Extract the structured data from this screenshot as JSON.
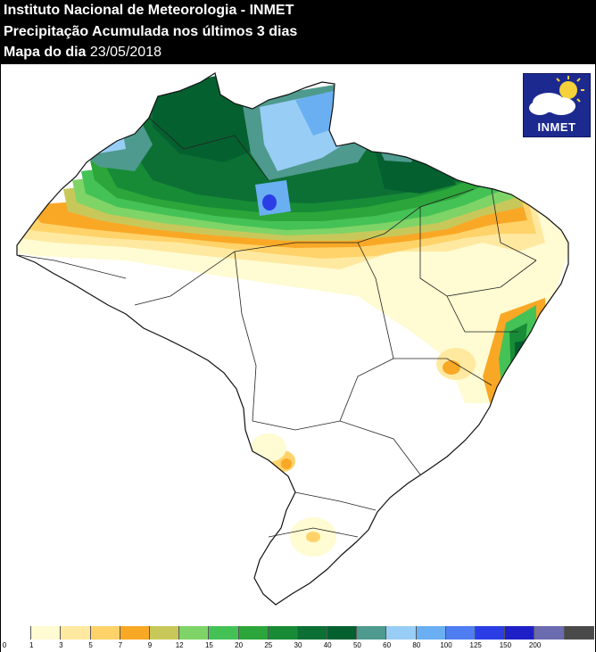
{
  "header": {
    "line1": "Instituto Nacional de Meteorologia - INMET",
    "line2": "Precipitação Acumulada nos últimos 3 dias",
    "line3_prefix": "Mapa do dia ",
    "line3_date": "23/05/2018"
  },
  "logo": {
    "text": "INMET",
    "icon": "cloud-sun-icon"
  },
  "legend": {
    "unit": "",
    "classes": [
      {
        "label": "0",
        "color": "#ffffff"
      },
      {
        "label": "1",
        "color": "#fffbd2"
      },
      {
        "label": "3",
        "color": "#ffe9a0"
      },
      {
        "label": "5",
        "color": "#ffd36a"
      },
      {
        "label": "7",
        "color": "#f9a826"
      },
      {
        "label": "9",
        "color": "#c8c85a"
      },
      {
        "label": "12",
        "color": "#7fd467"
      },
      {
        "label": "15",
        "color": "#45c256"
      },
      {
        "label": "20",
        "color": "#2ca53a"
      },
      {
        "label": "25",
        "color": "#178b36"
      },
      {
        "label": "30",
        "color": "#0c7035"
      },
      {
        "label": "40",
        "color": "#056030"
      },
      {
        "label": "50",
        "color": "#4e9a8e"
      },
      {
        "label": "60",
        "color": "#98cdf5"
      },
      {
        "label": "80",
        "color": "#6aaff2"
      },
      {
        "label": "100",
        "color": "#4f7ef2"
      },
      {
        "label": "125",
        "color": "#2b3ee6"
      },
      {
        "label": "150",
        "color": "#1f1fc8"
      },
      {
        "label": "200",
        "color": "#6b6bb0"
      },
      {
        "label": "",
        "color": "#4a4a4a"
      }
    ]
  }
}
